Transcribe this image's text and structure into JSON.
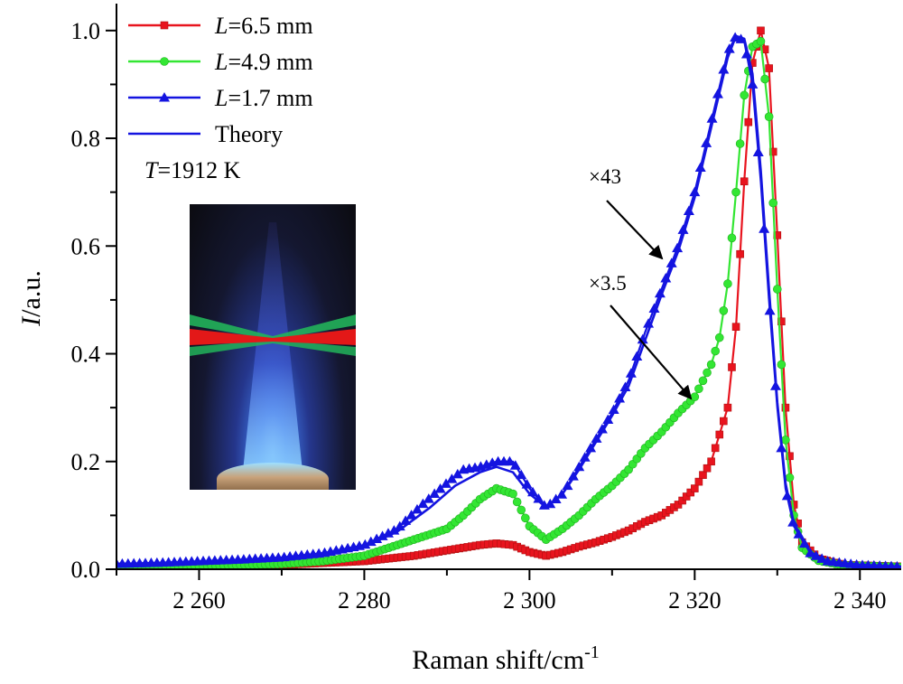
{
  "chart_data": {
    "type": "line",
    "xlabel": "Raman shift/cm",
    "xlabel_sup": "-1",
    "ylabel_italic": "I",
    "ylabel_rest": "/a.u.",
    "xlim": [
      2250,
      2345
    ],
    "ylim": [
      0.0,
      1.05
    ],
    "xticks": [
      2260,
      2280,
      2300,
      2320,
      2340
    ],
    "xtick_labels": [
      "2 260",
      "2 280",
      "2 300",
      "2 320",
      "2 340"
    ],
    "yticks": [
      0.0,
      0.2,
      0.4,
      0.6,
      0.8,
      1.0
    ],
    "ytick_labels": [
      "0.0",
      "0.2",
      "0.4",
      "0.6",
      "0.8",
      "1.0"
    ],
    "grid": false,
    "legend_position": "top-left",
    "legend": [
      {
        "italic": "L",
        "rest": "=6.5 mm",
        "color": "#e8141e",
        "marker": "square"
      },
      {
        "italic": "L",
        "rest": "=4.9 mm",
        "color": "#33e633",
        "marker": "circle"
      },
      {
        "italic": "L",
        "rest": "=1.7 mm",
        "color": "#1414e0",
        "marker": "triangle"
      },
      {
        "italic": "",
        "rest": "Theory",
        "color": "#1414e0",
        "marker": "none"
      }
    ],
    "temperature_label": {
      "italic": "T",
      "rest": "=1912 K"
    },
    "annotations": [
      {
        "text": "×43",
        "x": 2316.5,
        "y": 0.57
      },
      {
        "text": "×3.5",
        "x": 2320,
        "y": 0.31
      }
    ],
    "series": [
      {
        "name": "L=6.5 mm",
        "color": "#e8141e",
        "marker": "square",
        "x": [
          2250,
          2260,
          2270,
          2280,
          2286,
          2290,
          2294,
          2296,
          2298,
          2300,
          2302,
          2304,
          2306,
          2308,
          2310,
          2312,
          2314,
          2316,
          2318,
          2320,
          2322,
          2324,
          2325,
          2326,
          2327,
          2328,
          2329,
          2330,
          2331,
          2332,
          2333,
          2335,
          2338,
          2345
        ],
        "y": [
          0.005,
          0.006,
          0.008,
          0.015,
          0.025,
          0.035,
          0.045,
          0.048,
          0.045,
          0.032,
          0.025,
          0.032,
          0.042,
          0.05,
          0.06,
          0.072,
          0.088,
          0.1,
          0.12,
          0.15,
          0.2,
          0.3,
          0.45,
          0.72,
          0.94,
          1.0,
          0.93,
          0.62,
          0.3,
          0.12,
          0.05,
          0.02,
          0.008,
          0.005
        ]
      },
      {
        "name": "L=4.9 mm",
        "color": "#33e633",
        "marker": "circle",
        "x": [
          2250,
          2260,
          2270,
          2275,
          2280,
          2284,
          2288,
          2290,
          2292,
          2294,
          2296,
          2298,
          2300,
          2302,
          2304,
          2306,
          2308,
          2310,
          2312,
          2314,
          2316,
          2318,
          2320,
          2322,
          2323,
          2324,
          2325,
          2326,
          2327,
          2328,
          2329,
          2330,
          2331,
          2332,
          2333,
          2335,
          2338,
          2345
        ],
        "y": [
          0.004,
          0.006,
          0.01,
          0.015,
          0.025,
          0.045,
          0.065,
          0.075,
          0.1,
          0.13,
          0.15,
          0.14,
          0.08,
          0.055,
          0.075,
          0.1,
          0.13,
          0.155,
          0.185,
          0.225,
          0.255,
          0.29,
          0.32,
          0.38,
          0.43,
          0.53,
          0.7,
          0.88,
          0.97,
          0.98,
          0.84,
          0.52,
          0.24,
          0.1,
          0.04,
          0.016,
          0.007,
          0.004
        ]
      },
      {
        "name": "L=1.7 mm",
        "color": "#1414e0",
        "marker": "triangle",
        "x": [
          2250,
          2255,
          2260,
          2265,
          2270,
          2275,
          2280,
          2284,
          2287,
          2290,
          2292,
          2294,
          2296,
          2298,
          2300,
          2302,
          2304,
          2306,
          2308,
          2310,
          2312,
          2314,
          2316,
          2318,
          2320,
          2322,
          2324,
          2325,
          2326,
          2327,
          2328,
          2329,
          2330,
          2331,
          2332,
          2334,
          2336,
          2340,
          2345
        ],
        "y": [
          0.01,
          0.012,
          0.015,
          0.018,
          0.022,
          0.03,
          0.045,
          0.075,
          0.12,
          0.16,
          0.185,
          0.19,
          0.2,
          0.2,
          0.15,
          0.115,
          0.14,
          0.19,
          0.24,
          0.29,
          0.35,
          0.44,
          0.52,
          0.6,
          0.7,
          0.83,
          0.96,
          0.99,
          0.98,
          0.9,
          0.72,
          0.5,
          0.3,
          0.15,
          0.08,
          0.03,
          0.015,
          0.008,
          0.005
        ]
      },
      {
        "name": "Theory",
        "color": "#1414e0",
        "marker": "none",
        "x": [
          2250,
          2260,
          2270,
          2275,
          2280,
          2284,
          2288,
          2291,
          2294,
          2296,
          2298,
          2300,
          2302,
          2304,
          2306,
          2308,
          2310,
          2312,
          2314,
          2316,
          2318,
          2320,
          2322,
          2324,
          2325,
          2326,
          2327,
          2328,
          2329,
          2330,
          2331,
          2332,
          2334,
          2336,
          2340,
          2345
        ],
        "y": [
          0.008,
          0.013,
          0.02,
          0.028,
          0.042,
          0.07,
          0.115,
          0.155,
          0.18,
          0.19,
          0.18,
          0.14,
          0.115,
          0.14,
          0.185,
          0.235,
          0.285,
          0.34,
          0.425,
          0.51,
          0.59,
          0.69,
          0.82,
          0.95,
          0.99,
          0.985,
          0.92,
          0.74,
          0.52,
          0.31,
          0.16,
          0.085,
          0.032,
          0.015,
          0.008,
          0.005
        ]
      }
    ]
  }
}
